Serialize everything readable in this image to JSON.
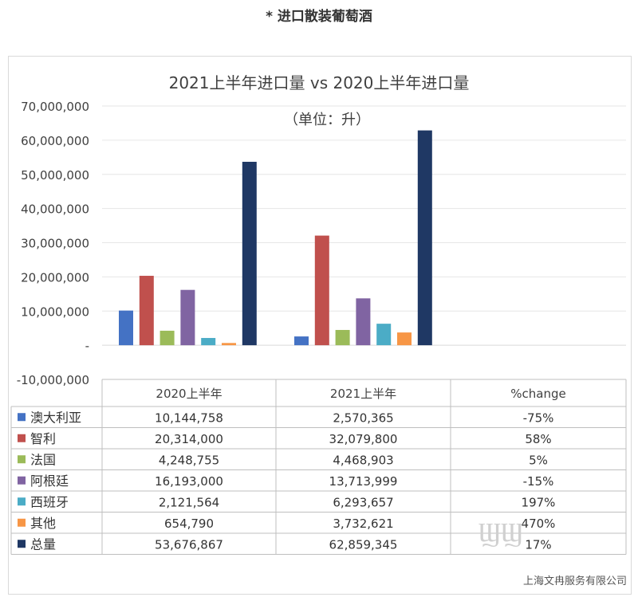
{
  "heading": "* 进口散装葡萄酒",
  "chart_data": {
    "type": "bar",
    "title": "2021上半年进口量 vs 2020上半年进口量",
    "subtitle": "（单位：升）",
    "categories": [
      "2020上半年",
      "2021上半年"
    ],
    "series": [
      {
        "name": "澳大利亚",
        "values": [
          10144758,
          2570365
        ],
        "color": "#4472c4"
      },
      {
        "name": "智利",
        "values": [
          20314000,
          32079800
        ],
        "color": "#c0504d"
      },
      {
        "name": "法国",
        "values": [
          4248755,
          4468903
        ],
        "color": "#9bbb59"
      },
      {
        "name": "阿根廷",
        "values": [
          16193000,
          13713999
        ],
        "color": "#8064a2"
      },
      {
        "name": "西班牙",
        "values": [
          2121564,
          6293657
        ],
        "color": "#4bacc6"
      },
      {
        "name": "其他",
        "values": [
          654790,
          3732621
        ],
        "color": "#f79646"
      },
      {
        "name": "总量",
        "values": [
          53676867,
          62859345
        ],
        "color": "#1f3864"
      }
    ],
    "ylim": [
      -10000000,
      70000000
    ],
    "yticks": [
      70000000,
      60000000,
      50000000,
      40000000,
      30000000,
      20000000,
      10000000,
      0,
      -10000000
    ],
    "ytick_labels": [
      "70,000,000",
      "60,000,000",
      "50,000,000",
      "40,000,000",
      "30,000,000",
      "20,000,000",
      "10,000,000",
      "-",
      "-10,000,000"
    ],
    "grid": true,
    "table": {
      "headers": [
        "2020上半年",
        "2021上半年",
        "%change"
      ],
      "rows": [
        [
          "10,144,758",
          "2,570,365",
          "-75%"
        ],
        [
          "20,314,000",
          "32,079,800",
          "58%"
        ],
        [
          "4,248,755",
          "4,468,903",
          "5%"
        ],
        [
          "16,193,000",
          "13,713,999",
          "-15%"
        ],
        [
          "2,121,564",
          "6,293,657",
          "197%"
        ],
        [
          "654,790",
          "3,732,621",
          "470%"
        ],
        [
          "53,676,867",
          "62,859,345",
          "17%"
        ]
      ]
    }
  },
  "watermark": "上海文冉服务有限公司"
}
